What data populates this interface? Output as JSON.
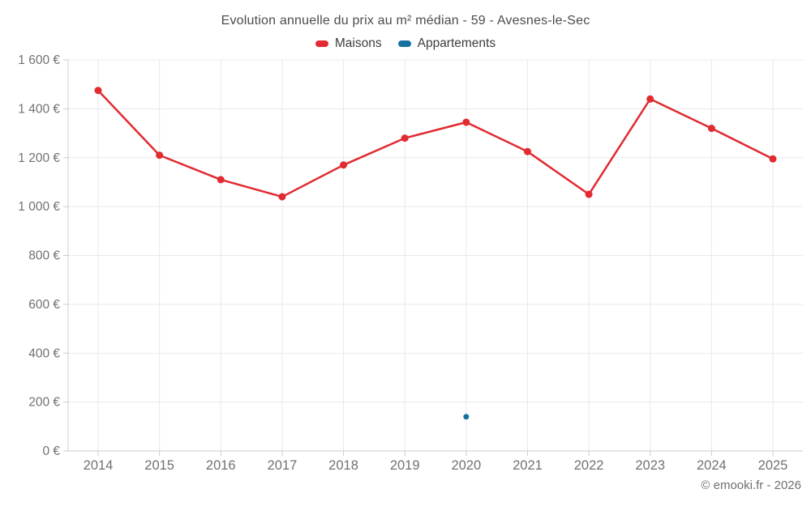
{
  "header": {
    "title": "Evolution annuelle du prix au m² médian - 59 - Avesnes-le-Sec"
  },
  "legend": [
    {
      "label": "Maisons",
      "color": "#e12a31"
    },
    {
      "label": "Appartements",
      "color": "#17719f"
    }
  ],
  "footer": {
    "copyright": "© emooki.fr - 2026"
  },
  "colors": {
    "maisons": "#e12a31",
    "appartements": "#17719f",
    "gridline": "#e9e9ec",
    "axis_line": "#cccccc",
    "tick_label": "#717171",
    "title_text": "#4c4c4c"
  },
  "chart_data": {
    "type": "line",
    "title": "Evolution annuelle du prix au m² médian - 59 - Avesnes-le-Sec",
    "x": [
      2014,
      2015,
      2016,
      2017,
      2018,
      2019,
      2020,
      2021,
      2022,
      2023,
      2024,
      2025
    ],
    "series": [
      {
        "name": "Maisons",
        "color": "#e12a31",
        "values": [
          1475,
          1210,
          1110,
          1040,
          1170,
          1280,
          1345,
          1225,
          1050,
          1440,
          1320,
          1195
        ]
      },
      {
        "name": "Appartements",
        "color": "#17719f",
        "values": [
          null,
          null,
          null,
          null,
          null,
          null,
          140,
          null,
          null,
          null,
          null,
          null
        ]
      }
    ],
    "xlabel": "",
    "ylabel": "",
    "ylim": [
      0,
      1600
    ],
    "y_ticks": [
      0,
      200,
      400,
      600,
      800,
      1000,
      1200,
      1400,
      1600
    ],
    "y_tick_labels": [
      "0 €",
      "200 €",
      "400 €",
      "600 €",
      "800 €",
      "1 000 €",
      "1 200 €",
      "1 400 €",
      "1 600 €"
    ],
    "grid": true,
    "legend_position": "top"
  }
}
